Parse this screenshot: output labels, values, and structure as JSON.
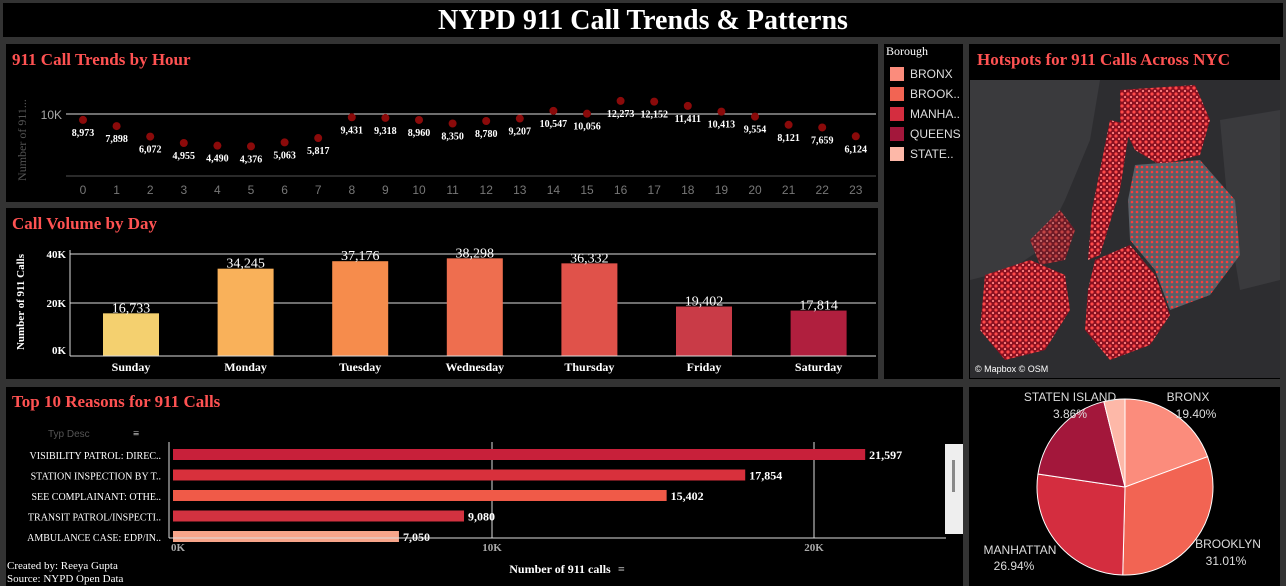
{
  "page": {
    "title": "NYPD 911 Call Trends & Patterns",
    "created_by": "Created by: Reeya Gupta",
    "source": "Source: NYPD Open Data"
  },
  "hourly": {
    "title": "911 Call Trends by Hour",
    "ylabel": "Number of 911...",
    "ytick": "10K"
  },
  "daily": {
    "title": "Call Volume by Day",
    "ylabel": "Number of 911 Calls",
    "yticks": [
      "40K",
      "20K",
      "0K"
    ]
  },
  "reasons": {
    "title": "Top 10 Reasons for 911 Calls",
    "column_header": "Typ Desc",
    "xlabel": "Number of 911 calls",
    "xticks": [
      "0K",
      "10K",
      "20K"
    ]
  },
  "legend": {
    "title": "Borough",
    "items": [
      {
        "label": "BRONX",
        "color": "#fb8c7c"
      },
      {
        "label": "BROOK..",
        "color": "#f26453"
      },
      {
        "label": "MANHA..",
        "color": "#d42d3f"
      },
      {
        "label": "QUEENS",
        "color": "#a3173b"
      },
      {
        "label": "STATE..",
        "color": "#fdb8a8"
      }
    ]
  },
  "map": {
    "title": "Hotspots for 911 Calls Across NYC",
    "attribution": "© Mapbox © OSM"
  },
  "pie": {
    "labels": [
      {
        "name": "STATEN ISLAND",
        "pct": "3.86%"
      },
      {
        "name": "BRONX",
        "pct": "19.40%"
      },
      {
        "name": "MANHATTAN",
        "pct": "26.94%"
      },
      {
        "name": "BROOKLYN",
        "pct": "31.01%"
      }
    ]
  },
  "chart_data": [
    {
      "type": "scatter",
      "title": "911 Call Trends by Hour",
      "xlabel": "",
      "ylabel": "Number of 911...",
      "x": [
        0,
        1,
        2,
        3,
        4,
        5,
        6,
        7,
        8,
        9,
        10,
        11,
        12,
        13,
        14,
        15,
        16,
        17,
        18,
        19,
        20,
        21,
        22,
        23
      ],
      "values": [
        8973,
        7898,
        6072,
        4955,
        4490,
        4376,
        5063,
        5817,
        9431,
        9318,
        8960,
        8350,
        8780,
        9207,
        10547,
        10056,
        12273,
        12152,
        11411,
        10413,
        9554,
        8121,
        7659,
        6124
      ],
      "value_labels": [
        "8,973",
        "7,898",
        "6,072",
        "4,955",
        "4,490",
        "4,376",
        "5,063",
        "5,817",
        "9,431",
        "9,318",
        "8,960",
        "8,350",
        "8,780",
        "9,207",
        "10,547",
        "10,056",
        "12,273",
        "12,152",
        "11,411",
        "10,413",
        "9,554",
        "8,121",
        "7,659",
        "6,124"
      ],
      "color": "#8b0a0a"
    },
    {
      "type": "bar",
      "title": "Call Volume by Day",
      "ylabel": "Number of 911 Calls",
      "ylim": [
        0,
        40000
      ],
      "categories": [
        "Sunday",
        "Monday",
        "Tuesday",
        "Wednesday",
        "Thursday",
        "Friday",
        "Saturday"
      ],
      "values": [
        16733,
        34245,
        37176,
        38298,
        36332,
        19402,
        17814
      ],
      "value_labels": [
        "16,733",
        "34,245",
        "37,176",
        "38,298",
        "36,332",
        "19,402",
        "17,814"
      ],
      "colors": [
        "#f4d06f",
        "#f9b15a",
        "#f68c4c",
        "#ee6e4f",
        "#e0524a",
        "#c93b47",
        "#b01f3e"
      ]
    },
    {
      "type": "bar",
      "orientation": "horizontal",
      "title": "Top 10 Reasons for 911 Calls",
      "xlabel": "Number of 911 calls",
      "xlim": [
        0,
        23000
      ],
      "categories": [
        "VISIBILITY PATROL: DIREC..",
        "STATION INSPECTION BY T..",
        "SEE COMPLAINANT: OTHE..",
        "TRANSIT PATROL/INSPECTI..",
        "AMBULANCE CASE: EDP/IN.."
      ],
      "values": [
        21597,
        17854,
        15402,
        9080,
        7050
      ],
      "value_labels": [
        "21,597",
        "17,854",
        "15,402",
        "9,080",
        "7,050"
      ],
      "colors": [
        "#c8203a",
        "#d8303c",
        "#f05a48",
        "#d23240",
        "#f7a58a"
      ]
    },
    {
      "type": "pie",
      "categories": [
        "BRONX",
        "BROOKLYN",
        "MANHATTAN",
        "QUEENS",
        "STATEN ISLAND"
      ],
      "values": [
        19.4,
        31.01,
        26.94,
        18.79,
        3.86
      ],
      "colors": [
        "#fb8c7c",
        "#f26453",
        "#d42d3f",
        "#a3173b",
        "#fdb8a8"
      ]
    }
  ]
}
